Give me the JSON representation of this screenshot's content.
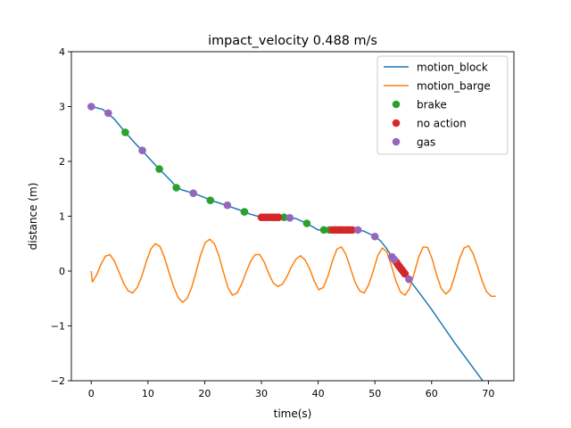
{
  "chart_data": {
    "type": "line",
    "title": "impact_velocity 0.488 m/s",
    "xlabel": "time(s)",
    "ylabel": "distance (m)",
    "xlim": [
      -3.5,
      74.5
    ],
    "ylim": [
      -2,
      4
    ],
    "xticks": [
      0,
      10,
      20,
      30,
      40,
      50,
      60,
      70
    ],
    "yticks": [
      -2,
      -1,
      0,
      1,
      2,
      3,
      4
    ],
    "xtick_labels": [
      "0",
      "10",
      "20",
      "30",
      "40",
      "50",
      "60",
      "70"
    ],
    "ytick_labels": [
      "−2",
      "−1",
      "0",
      "1",
      "2",
      "3",
      "4"
    ],
    "grid": false,
    "legend_position": "upper-right",
    "series": [
      {
        "name": "motion_block",
        "kind": "line",
        "color": "#1f77b4",
        "x": [
          0,
          2,
          4,
          6,
          8,
          9,
          10,
          12,
          14,
          15,
          16,
          18,
          20,
          21,
          22,
          24,
          26,
          27,
          28,
          30,
          32,
          34,
          35,
          36,
          38,
          40,
          42,
          44,
          46,
          47,
          48,
          50,
          51,
          52,
          53,
          54,
          55,
          56,
          58,
          60,
          62,
          64,
          66,
          68,
          70,
          71
        ],
        "y": [
          3.0,
          2.95,
          2.78,
          2.53,
          2.3,
          2.2,
          2.08,
          1.86,
          1.65,
          1.53,
          1.48,
          1.42,
          1.34,
          1.29,
          1.26,
          1.19,
          1.12,
          1.08,
          1.04,
          0.98,
          0.98,
          0.98,
          0.97,
          0.96,
          0.87,
          0.75,
          0.75,
          0.75,
          0.75,
          0.75,
          0.73,
          0.63,
          0.55,
          0.42,
          0.26,
          0.1,
          -0.03,
          -0.15,
          -0.42,
          -0.7,
          -1.0,
          -1.3,
          -1.58,
          -1.86,
          -2.14,
          -2.3
        ]
      },
      {
        "name": "motion_barge",
        "kind": "line",
        "color": "#ff7f0e",
        "x": [
          0,
          0.2,
          0.9,
          1.7,
          2.5,
          3.3,
          4.1,
          4.9,
          5.7,
          6.5,
          7.3,
          8.1,
          8.9,
          9.7,
          10.5,
          11.3,
          12.1,
          12.9,
          13.7,
          14.5,
          15.3,
          16.1,
          16.9,
          17.7,
          18.5,
          19.3,
          20.1,
          20.9,
          21.7,
          22.5,
          23.3,
          24.1,
          24.9,
          25.7,
          26.5,
          27.3,
          28.1,
          28.9,
          29.7,
          30.5,
          31.3,
          32.1,
          32.9,
          33.7,
          34.5,
          35.3,
          36.1,
          36.9,
          37.7,
          38.5,
          39.3,
          40.1,
          40.9,
          41.7,
          42.5,
          43.3,
          44.1,
          44.9,
          45.7,
          46.5,
          47.3,
          48.1,
          48.9,
          49.7,
          50.5,
          51.3,
          52.1,
          52.9,
          53.7,
          54.5,
          55.3,
          56.1,
          56.9,
          57.7,
          58.5,
          59.3,
          60.1,
          60.9,
          61.7,
          62.5,
          63.3,
          64.1,
          64.9,
          65.7,
          66.5,
          67.3,
          68.1,
          68.9,
          69.7,
          70.5,
          71.3
        ],
        "y": [
          0.0,
          -0.2,
          -0.08,
          0.12,
          0.27,
          0.3,
          0.18,
          -0.02,
          -0.22,
          -0.36,
          -0.4,
          -0.3,
          -0.1,
          0.17,
          0.4,
          0.5,
          0.45,
          0.25,
          -0.02,
          -0.28,
          -0.48,
          -0.57,
          -0.5,
          -0.3,
          -0.01,
          0.3,
          0.52,
          0.58,
          0.5,
          0.28,
          -0.02,
          -0.3,
          -0.44,
          -0.4,
          -0.24,
          -0.02,
          0.18,
          0.3,
          0.3,
          0.16,
          -0.05,
          -0.22,
          -0.28,
          -0.24,
          -0.1,
          0.08,
          0.22,
          0.28,
          0.2,
          0.04,
          -0.18,
          -0.34,
          -0.3,
          -0.1,
          0.18,
          0.4,
          0.44,
          0.3,
          0.05,
          -0.2,
          -0.36,
          -0.4,
          -0.25,
          0.0,
          0.28,
          0.42,
          0.35,
          0.1,
          -0.18,
          -0.38,
          -0.44,
          -0.32,
          -0.05,
          0.25,
          0.44,
          0.43,
          0.22,
          -0.08,
          -0.32,
          -0.42,
          -0.34,
          -0.08,
          0.22,
          0.42,
          0.46,
          0.32,
          0.08,
          -0.18,
          -0.38,
          -0.46,
          -0.46
        ]
      },
      {
        "name": "brake",
        "kind": "marker",
        "color": "#2ca02c",
        "x": [
          6,
          12,
          15,
          21,
          27,
          33,
          34,
          38,
          41,
          42,
          43,
          44,
          45
        ],
        "y": [
          2.53,
          1.86,
          1.52,
          1.29,
          1.08,
          0.98,
          0.98,
          0.87,
          0.75,
          0.75,
          0.75,
          0.75,
          0.75
        ]
      },
      {
        "name": "no action",
        "kind": "marker",
        "color": "#d62728",
        "x": [
          30,
          30.5,
          31,
          31.5,
          32,
          32.5,
          33,
          42.5,
          43,
          43.5,
          44,
          44.5,
          45,
          45.5,
          46,
          53.8,
          54.1,
          54.4,
          54.7,
          55,
          55.3
        ],
        "y": [
          0.98,
          0.98,
          0.98,
          0.98,
          0.98,
          0.98,
          0.98,
          0.75,
          0.75,
          0.75,
          0.75,
          0.75,
          0.75,
          0.75,
          0.75,
          0.16,
          0.11,
          0.07,
          0.03,
          -0.01,
          -0.05
        ]
      },
      {
        "name": "gas",
        "kind": "marker",
        "color": "#9467bd",
        "x": [
          0,
          3,
          9,
          18,
          24,
          35,
          47,
          50,
          53,
          53.4,
          56
        ],
        "y": [
          3.0,
          2.88,
          2.2,
          1.42,
          1.2,
          0.97,
          0.75,
          0.63,
          0.26,
          0.21,
          -0.15
        ]
      }
    ]
  }
}
